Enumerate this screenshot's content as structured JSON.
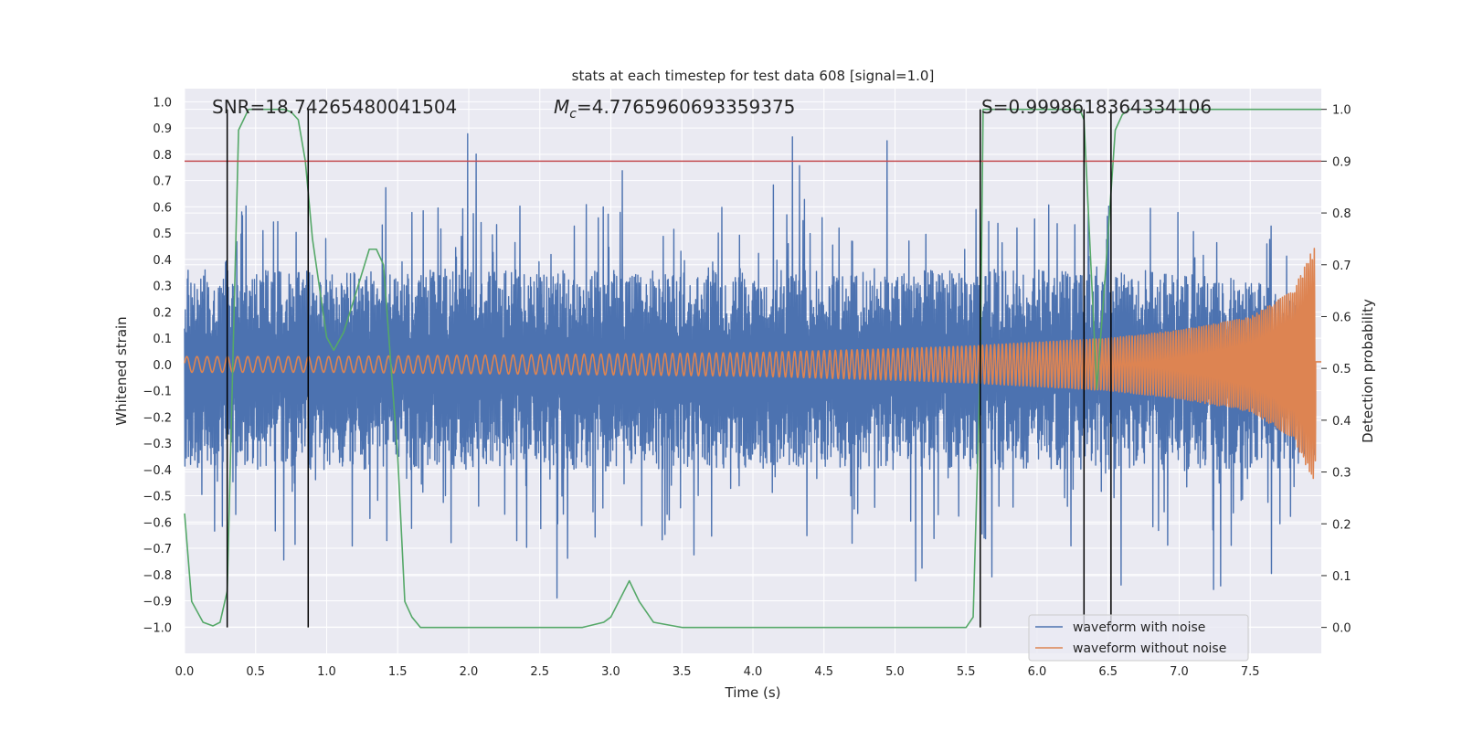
{
  "chart_data": {
    "type": "line",
    "title": "stats at each timestep for test data 608 [signal=1.0]",
    "xlabel": "Time (s)",
    "ylabel": "Whitened strain",
    "y2label": "Detection probability",
    "xlim": [
      0.0,
      8.0
    ],
    "ylim": [
      -1.1,
      1.05
    ],
    "y2lim": [
      -0.05,
      1.04
    ],
    "xticks": [
      "0.0",
      "0.5",
      "1.0",
      "1.5",
      "2.0",
      "2.5",
      "3.0",
      "3.5",
      "4.0",
      "4.5",
      "5.0",
      "5.5",
      "6.0",
      "6.5",
      "7.0",
      "7.5"
    ],
    "yticks": [
      "−1.0",
      "−0.9",
      "−0.8",
      "−0.7",
      "−0.6",
      "−0.5",
      "−0.4",
      "−0.3",
      "−0.2",
      "−0.1",
      "0.0",
      "0.1",
      "0.2",
      "0.3",
      "0.4",
      "0.5",
      "0.6",
      "0.7",
      "0.8",
      "0.9",
      "1.0"
    ],
    "y2ticks": [
      "0.0",
      "0.1",
      "0.2",
      "0.3",
      "0.4",
      "0.5",
      "0.6",
      "0.7",
      "0.8",
      "0.9",
      "1.0"
    ],
    "annotations": {
      "snr": "SNR=18.74265480041504",
      "mc_symbol": "M",
      "mc_sub": "c",
      "mc_value": "=4.7765960693359375",
      "s": "S=0.9998618364334106"
    },
    "threshold": 0.9,
    "vlines": [
      0.3,
      0.87,
      5.6,
      6.33,
      6.52
    ],
    "series": [
      {
        "name": "waveform with noise",
        "color": "#4c72b0",
        "kind": "noise",
        "envelope_t": [
          0.0,
          1.0,
          2.0,
          3.0,
          4.0,
          5.0,
          6.0,
          7.0,
          7.5,
          7.95,
          8.0
        ],
        "envelope_pos": [
          0.36,
          0.36,
          0.36,
          0.36,
          0.36,
          0.36,
          0.36,
          0.35,
          0.33,
          0.2,
          0.2
        ],
        "envelope_neg": [
          -0.4,
          -0.4,
          -0.4,
          -0.4,
          -0.4,
          -0.4,
          -0.4,
          -0.4,
          -0.4,
          -0.4,
          -0.4
        ]
      },
      {
        "name": "waveform without noise",
        "color": "#dd8452",
        "kind": "chirp",
        "amplitude_t": [
          0.0,
          1.0,
          2.0,
          3.0,
          4.0,
          5.0,
          5.5,
          6.0,
          6.5,
          7.0,
          7.5,
          7.8,
          7.95,
          8.0
        ],
        "amplitude": [
          0.03,
          0.03,
          0.035,
          0.04,
          0.045,
          0.06,
          0.07,
          0.085,
          0.1,
          0.13,
          0.18,
          0.28,
          0.45,
          0.0
        ]
      },
      {
        "name": "detection probability",
        "color": "#55a868",
        "axis": "right",
        "x": [
          0.0,
          0.05,
          0.13,
          0.2,
          0.25,
          0.3,
          0.38,
          0.45,
          0.5,
          0.6,
          0.7,
          0.75,
          0.8,
          0.85,
          0.9,
          1.0,
          1.05,
          1.12,
          1.2,
          1.3,
          1.35,
          1.4,
          1.5,
          1.55,
          1.6,
          1.66,
          1.7,
          2.0,
          2.5,
          2.8,
          2.95,
          3.0,
          3.13,
          3.2,
          3.3,
          3.5,
          4.0,
          4.5,
          5.0,
          5.5,
          5.55,
          5.6,
          5.62,
          6.0,
          6.3,
          6.33,
          6.42,
          6.48,
          6.55,
          6.6,
          6.65,
          6.7,
          7.0,
          7.5,
          8.0
        ],
        "y": [
          0.22,
          0.05,
          0.01,
          0.003,
          0.01,
          0.07,
          0.96,
          1.0,
          1.0,
          1.0,
          1.0,
          0.995,
          0.98,
          0.9,
          0.75,
          0.56,
          0.535,
          0.57,
          0.64,
          0.73,
          0.73,
          0.7,
          0.33,
          0.05,
          0.02,
          0.0,
          0.0,
          0.0,
          0.0,
          0.0,
          0.01,
          0.02,
          0.09,
          0.05,
          0.01,
          0.0,
          0.0,
          0.0,
          0.0,
          0.0,
          0.02,
          0.5,
          1.0,
          1.0,
          1.0,
          0.98,
          0.46,
          0.68,
          0.96,
          0.99,
          1.0,
          1.0,
          1.0,
          1.0,
          1.0
        ]
      }
    ],
    "legend": {
      "position": "lower-right",
      "entries": [
        "waveform with noise",
        "waveform without noise"
      ]
    },
    "grid": true
  }
}
